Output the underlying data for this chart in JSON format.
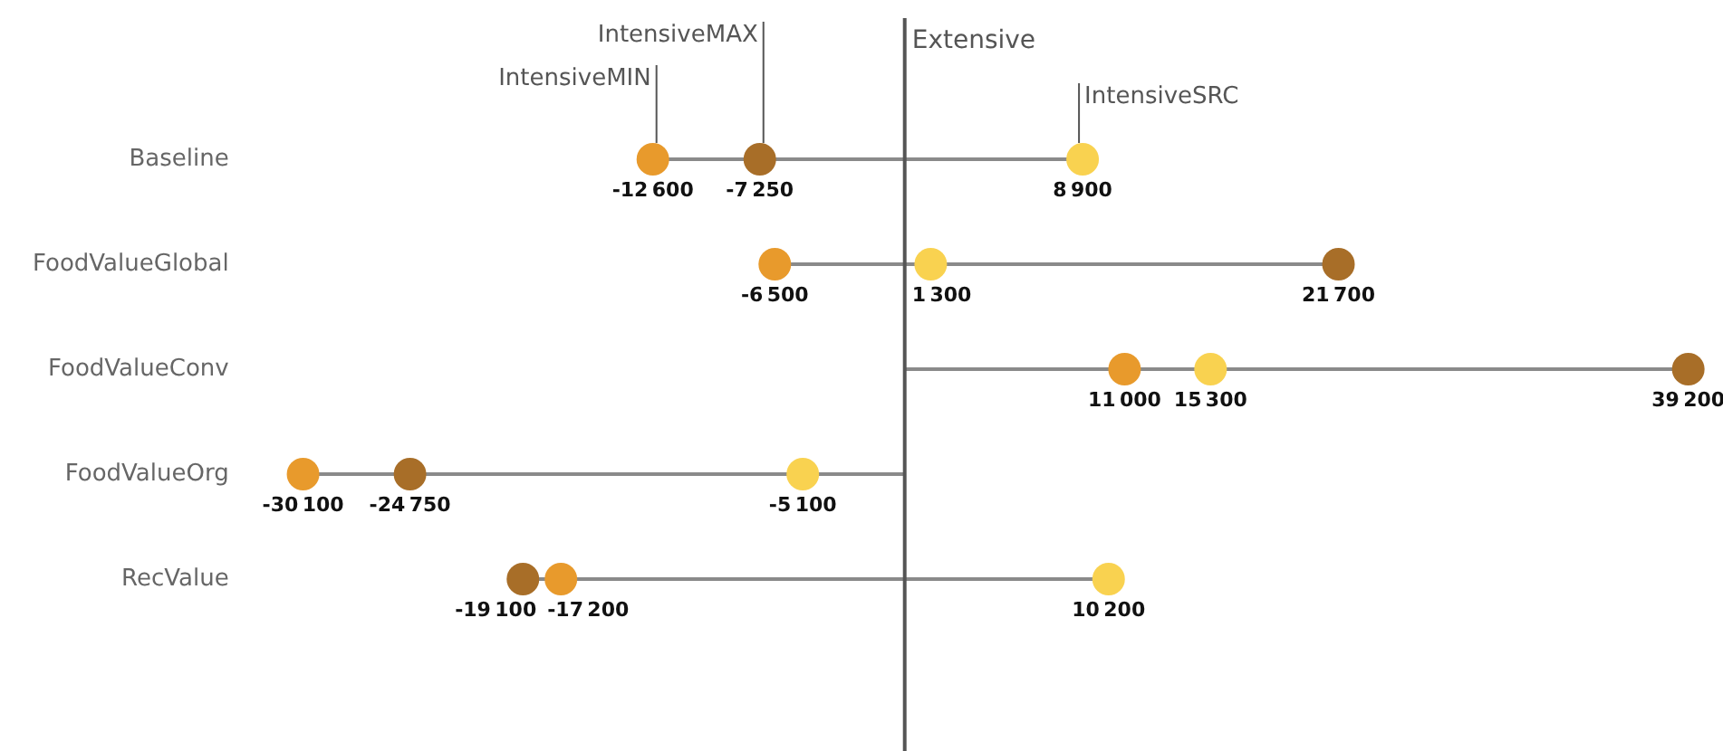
{
  "chart_data": {
    "type": "scatter",
    "orientation": "horizontal",
    "categories": [
      "Baseline",
      "FoodValueGlobal",
      "FoodValueConv",
      "FoodValueOrg",
      "RecValue"
    ],
    "series": [
      {
        "name": "IntensiveMIN",
        "color": "#e89a2c",
        "values": [
          -12600,
          -6500,
          11000,
          -30100,
          -17200
        ]
      },
      {
        "name": "IntensiveMAX",
        "color": "#a86e28",
        "values": [
          -7250,
          21700,
          39200,
          -24750,
          -19100
        ]
      },
      {
        "name": "IntensiveSRC",
        "color": "#f9d250",
        "values": [
          8900,
          1300,
          15300,
          -5100,
          10200
        ]
      }
    ],
    "ref_lines": [
      {
        "axis": "x",
        "value": 0,
        "label": "Extensive",
        "color": "#555555"
      }
    ],
    "data_labels": true,
    "tick_labels": "y",
    "grid": false,
    "legend": false,
    "marker": "circle"
  }
}
